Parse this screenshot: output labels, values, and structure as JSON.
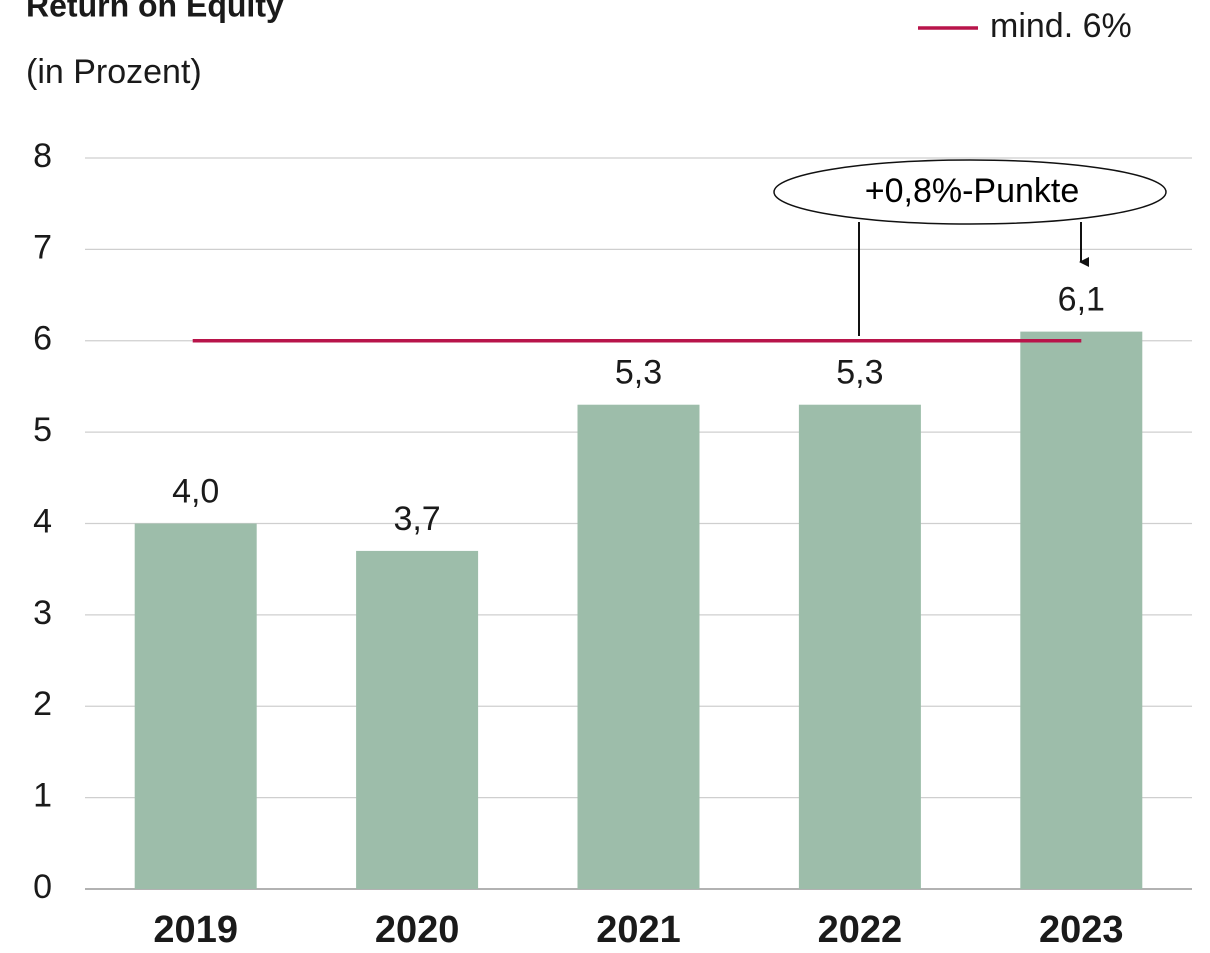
{
  "chart_data": {
    "type": "bar",
    "title": "Return on Equity",
    "subtitle": "(in Prozent)",
    "categories": [
      "2019",
      "2020",
      "2021",
      "2022",
      "2023"
    ],
    "values": [
      4.0,
      3.7,
      5.3,
      5.3,
      6.1
    ],
    "value_labels": [
      "4,0",
      "3,7",
      "5,3",
      "5,3",
      "6,1"
    ],
    "color": "#9dbdaa",
    "target": {
      "name": "mind. 6%",
      "value": 6,
      "color": "#b8144a"
    },
    "annotation": "+0,8%-Punkte",
    "ylim": [
      0,
      8
    ],
    "yticks": [
      0,
      1,
      2,
      3,
      4,
      5,
      6,
      7,
      8
    ],
    "grid": true
  }
}
